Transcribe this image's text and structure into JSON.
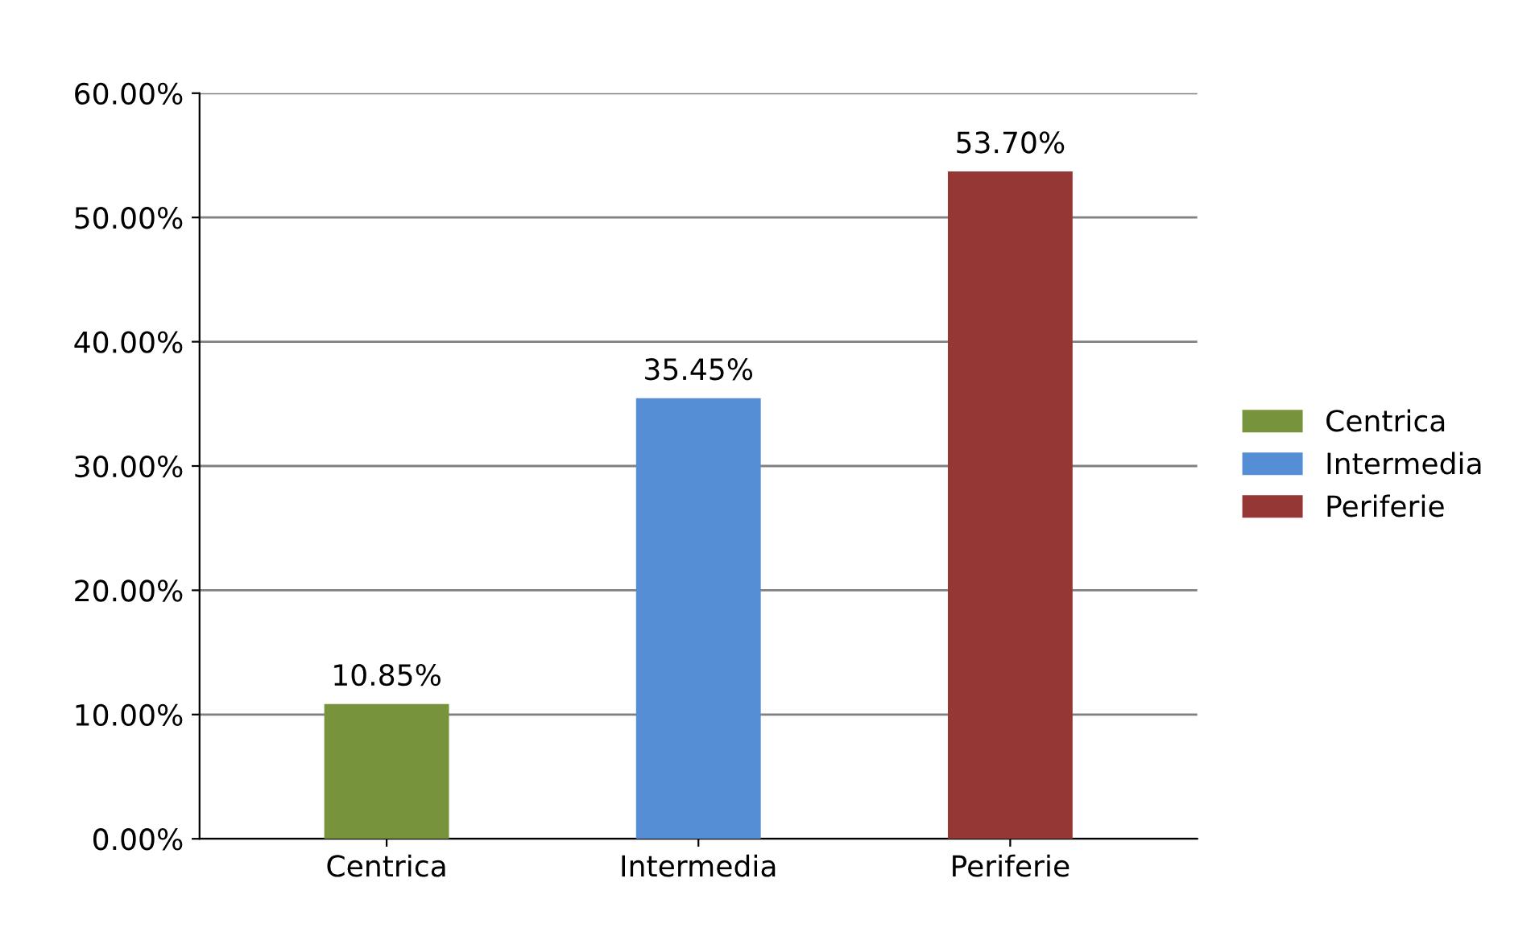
{
  "chart_data": {
    "type": "bar",
    "categories": [
      "Centrica",
      "Intermedia",
      "Periferie"
    ],
    "series": [
      {
        "name": "Centrica",
        "color": "#77933c",
        "values": [
          10.85,
          null,
          null
        ],
        "value_labels": [
          "10.85%",
          null,
          null
        ]
      },
      {
        "name": "Intermedia",
        "color": "#558ed5",
        "values": [
          null,
          35.45,
          null
        ],
        "value_labels": [
          null,
          "35.45%",
          null
        ]
      },
      {
        "name": "Periferie",
        "color": "#953735",
        "values": [
          null,
          null,
          53.7
        ],
        "value_labels": [
          null,
          null,
          "53.70%"
        ]
      }
    ],
    "ylim": [
      0,
      60
    ],
    "yticks": [
      {
        "value": 0,
        "label": "0.00%"
      },
      {
        "value": 10,
        "label": "10.00%"
      },
      {
        "value": 20,
        "label": "20.00%"
      },
      {
        "value": 30,
        "label": "30.00%"
      },
      {
        "value": 40,
        "label": "40.00%"
      },
      {
        "value": 50,
        "label": "50.00%"
      },
      {
        "value": 60,
        "label": "60.00%"
      }
    ],
    "grid": "y",
    "legend": "right"
  }
}
